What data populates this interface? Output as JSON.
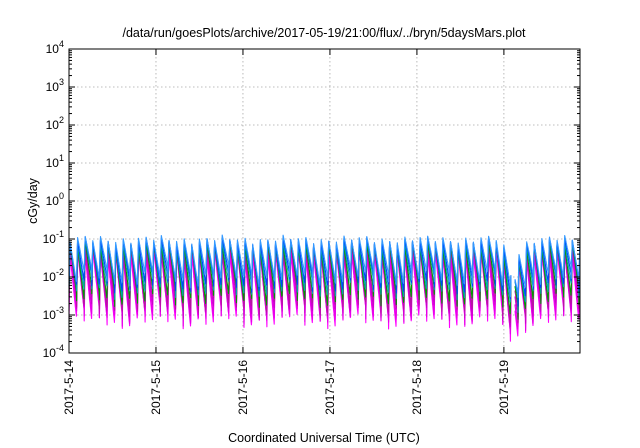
{
  "chart_data": {
    "type": "line",
    "title": "/data/run/goesPlots/archive/2017-05-19/21:00/flux/../bryn/5daysMars.plot",
    "xlabel": "Coordinated Universal Time (UTC)",
    "ylabel": "cGy/day",
    "yscale": "log",
    "ylim": [
      0.0001,
      10000
    ],
    "y_ticks": [
      {
        "base": "10",
        "exp": "-4"
      },
      {
        "base": "10",
        "exp": "-3"
      },
      {
        "base": "10",
        "exp": "-2"
      },
      {
        "base": "10",
        "exp": "-1"
      },
      {
        "base": "10",
        "exp": "0"
      },
      {
        "base": "10",
        "exp": "1"
      },
      {
        "base": "10",
        "exp": "2"
      },
      {
        "base": "10",
        "exp": "3"
      },
      {
        "base": "10",
        "exp": "4"
      }
    ],
    "x_ticks": [
      "2017-5-14",
      "2017-5-15",
      "2017-5-16",
      "2017-5-17",
      "2017-5-18",
      "2017-5-19"
    ],
    "xlim": [
      "2017-05-14 00:00",
      "2017-05-19 21:00"
    ],
    "grid": true,
    "legend": "none",
    "gap": [
      "2017-05-19 02:00",
      "2017-05-19 03:00"
    ],
    "pattern_note": "sawtooth: rapid rise then gradual decay, repeating about every 2.1 hours",
    "series": [
      {
        "color": "#ff00ff",
        "peak": 0.04,
        "trough": 0.0008
      },
      {
        "color": "#e600e6",
        "peak": 0.05,
        "trough": 0.001
      },
      {
        "color": "#cc00cc",
        "peak": 0.06,
        "trough": 0.0015
      },
      {
        "color": "#b5179e",
        "peak": 0.07,
        "trough": 0.002
      },
      {
        "color": "#009900",
        "peak": 0.07,
        "trough": 0.003
      },
      {
        "color": "#00aaaa",
        "peak": 0.08,
        "trough": 0.005
      },
      {
        "color": "#0044ff",
        "peak": 0.09,
        "trough": 0.007
      },
      {
        "color": "#3399ff",
        "peak": 0.1,
        "trough": 0.01
      }
    ]
  }
}
